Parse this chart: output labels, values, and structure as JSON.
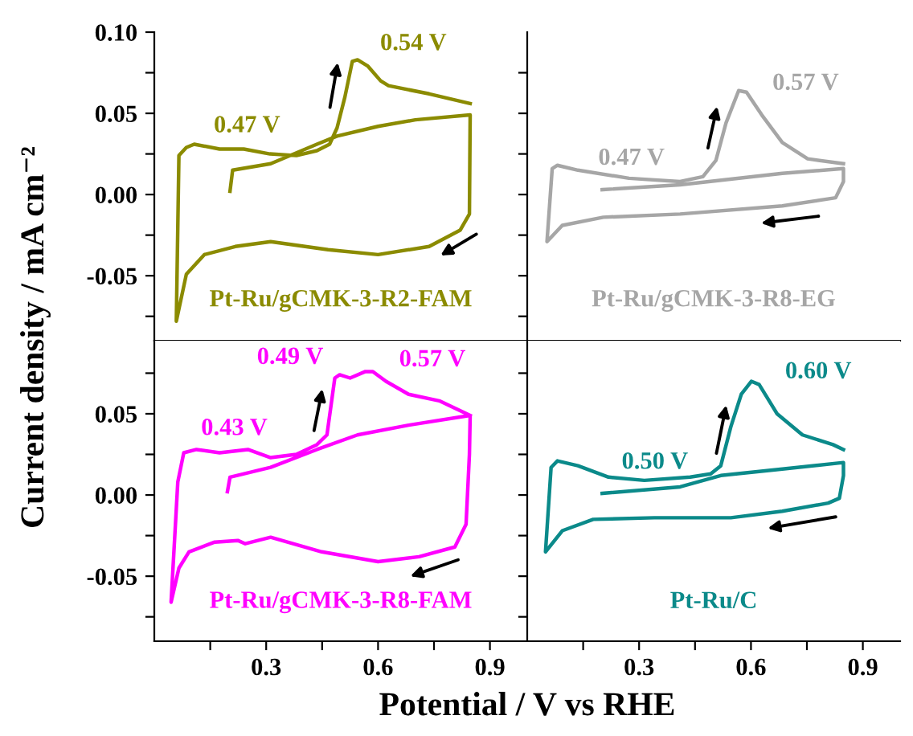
{
  "chart_data": [
    {
      "type": "line",
      "ylabel": "Current density / mA cm⁻²",
      "xlim": [
        0.0,
        1.0
      ],
      "ylim": [
        -0.09,
        0.1
      ],
      "xticks": [
        {
          "value": 0.15,
          "label": null
        },
        {
          "value": 0.3,
          "label": null
        },
        {
          "value": 0.45,
          "label": null
        },
        {
          "value": 0.6,
          "label": null
        },
        {
          "value": 0.75,
          "label": null
        },
        {
          "value": 0.9,
          "label": null
        }
      ],
      "yticks": [
        {
          "value": -0.075,
          "label": null
        },
        {
          "value": -0.05,
          "label": "-0.05"
        },
        {
          "value": -0.025,
          "label": null
        },
        {
          "value": 0,
          "label": "0.00"
        },
        {
          "value": 0.025,
          "label": null
        },
        {
          "value": 0.05,
          "label": "0.05"
        },
        {
          "value": 0.075,
          "label": null
        },
        {
          "value": 0.1,
          "label": "0.10"
        }
      ],
      "tick_labels": "y",
      "series": [
        {
          "name": "Pt-Ru/gCMK-3-R2-FAM",
          "color": "#8b8b00",
          "x": [
            0.203,
            0.21,
            0.312,
            0.436,
            0.49,
            0.6,
            0.7,
            0.847,
            0.845,
            0.82,
            0.737,
            0.6,
            0.466,
            0.312,
            0.217,
            0.134,
            0.086,
            0.059,
            0.066,
            0.086,
            0.107,
            0.175,
            0.24,
            0.31,
            0.381,
            0.436,
            0.47,
            0.49,
            0.511,
            0.531,
            0.545,
            0.573,
            0.607,
            0.628,
            0.737,
            0.847
          ],
          "values": [
            0.002,
            0.015,
            0.019,
            0.031,
            0.036,
            0.042,
            0.046,
            0.049,
            -0.012,
            -0.022,
            -0.032,
            -0.037,
            -0.034,
            -0.029,
            -0.032,
            -0.037,
            -0.049,
            -0.078,
            0.024,
            0.029,
            0.031,
            0.028,
            0.028,
            0.025,
            0.024,
            0.027,
            0.031,
            0.041,
            0.06,
            0.082,
            0.083,
            0.079,
            0.07,
            0.067,
            0.062,
            0.056
          ]
        }
      ],
      "annotations": [
        {
          "text": "0.54 V",
          "x": 0.545,
          "y": 0.083
        },
        {
          "text": "0.47 V",
          "x": 0.47,
          "y": 0.031
        }
      ]
    },
    {
      "type": "line",
      "xlim": [
        0.0,
        1.0
      ],
      "ylim": [
        -0.09,
        0.1
      ],
      "xticks": [
        {
          "value": 0.15,
          "label": null
        },
        {
          "value": 0.3,
          "label": null
        },
        {
          "value": 0.45,
          "label": null
        },
        {
          "value": 0.6,
          "label": null
        },
        {
          "value": 0.75,
          "label": null
        },
        {
          "value": 0.9,
          "label": null
        }
      ],
      "yticks": [
        {
          "value": -0.075,
          "label": null
        },
        {
          "value": -0.05,
          "label": null
        },
        {
          "value": -0.025,
          "label": null
        },
        {
          "value": 0,
          "label": null
        },
        {
          "value": 0.025,
          "label": null
        },
        {
          "value": 0.05,
          "label": null
        },
        {
          "value": 0.075,
          "label": null
        }
      ],
      "tick_labels": false,
      "series": [
        {
          "name": "Pt-Ru/gCMK-3-R8-EG",
          "color": "#a6a6a6",
          "x": [
            0.201,
            0.41,
            0.684,
            0.848,
            0.848,
            0.827,
            0.684,
            0.41,
            0.204,
            0.094,
            0.053,
            0.067,
            0.081,
            0.136,
            0.273,
            0.41,
            0.471,
            0.506,
            0.533,
            0.567,
            0.588,
            0.629,
            0.684,
            0.752,
            0.848
          ],
          "values": [
            0.003,
            0.006,
            0.013,
            0.016,
            0.008,
            -0.002,
            -0.007,
            -0.012,
            -0.014,
            -0.019,
            -0.029,
            0.016,
            0.018,
            0.015,
            0.01,
            0.008,
            0.011,
            0.021,
            0.044,
            0.064,
            0.063,
            0.049,
            0.032,
            0.022,
            0.019
          ]
        }
      ],
      "annotations": [
        {
          "text": "0.57 V",
          "x": 0.567,
          "y": 0.064
        },
        {
          "text": "0.47 V",
          "x": 0.471,
          "y": 0.011
        }
      ]
    },
    {
      "type": "line",
      "xlabel": "Potential / V vs RHE",
      "xlim": [
        0.0,
        1.0
      ],
      "ylim": [
        -0.09,
        0.095
      ],
      "xticks": [
        {
          "value": 0.15,
          "label": null
        },
        {
          "value": 0.3,
          "label": "0.3"
        },
        {
          "value": 0.45,
          "label": null
        },
        {
          "value": 0.6,
          "label": "0.6"
        },
        {
          "value": 0.75,
          "label": null
        },
        {
          "value": 0.9,
          "label": "0.9"
        }
      ],
      "yticks": [
        {
          "value": -0.075,
          "label": null
        },
        {
          "value": -0.05,
          "label": "-0.05"
        },
        {
          "value": -0.025,
          "label": null
        },
        {
          "value": 0,
          "label": "0.00"
        },
        {
          "value": 0.025,
          "label": null
        },
        {
          "value": 0.05,
          "label": "0.05"
        },
        {
          "value": 0.075,
          "label": null
        }
      ],
      "series": [
        {
          "name": "Pt-Ru/gCMK-3-R8-FAM",
          "color": "#ff00ff",
          "x": [
            0.196,
            0.203,
            0.312,
            0.436,
            0.545,
            0.682,
            0.847,
            0.845,
            0.836,
            0.806,
            0.71,
            0.6,
            0.449,
            0.312,
            0.244,
            0.224,
            0.162,
            0.093,
            0.066,
            0.045,
            0.063,
            0.079,
            0.113,
            0.175,
            0.251,
            0.312,
            0.381,
            0.436,
            0.463,
            0.484,
            0.497,
            0.525,
            0.566,
            0.586,
            0.621,
            0.682,
            0.764,
            0.847
          ],
          "values": [
            0.002,
            0.011,
            0.017,
            0.028,
            0.037,
            0.043,
            0.049,
            0.025,
            -0.018,
            -0.032,
            -0.038,
            -0.041,
            -0.035,
            -0.026,
            -0.03,
            -0.028,
            -0.029,
            -0.035,
            -0.045,
            -0.066,
            0.008,
            0.026,
            0.028,
            0.026,
            0.028,
            0.023,
            0.025,
            0.031,
            0.037,
            0.072,
            0.074,
            0.072,
            0.076,
            0.076,
            0.07,
            0.062,
            0.058,
            0.049
          ]
        }
      ],
      "annotations": [
        {
          "text": "0.49 V",
          "x": 0.484,
          "y": 0.072
        },
        {
          "text": "0.57 V",
          "x": 0.566,
          "y": 0.076
        },
        {
          "text": "0.43 V",
          "x": 0.436,
          "y": 0.031
        }
      ]
    },
    {
      "type": "line",
      "xlim": [
        0.0,
        1.0
      ],
      "ylim": [
        -0.09,
        0.095
      ],
      "xticks": [
        {
          "value": 0.15,
          "label": null
        },
        {
          "value": 0.3,
          "label": "0.3"
        },
        {
          "value": 0.45,
          "label": null
        },
        {
          "value": 0.6,
          "label": "0.6"
        },
        {
          "value": 0.75,
          "label": null
        },
        {
          "value": 0.9,
          "label": "0.9"
        }
      ],
      "yticks": [
        {
          "value": -0.075,
          "label": null
        },
        {
          "value": -0.05,
          "label": null
        },
        {
          "value": -0.025,
          "label": null
        },
        {
          "value": 0,
          "label": null
        },
        {
          "value": 0.025,
          "label": null
        },
        {
          "value": 0.05,
          "label": null
        },
        {
          "value": 0.075,
          "label": null
        }
      ],
      "tick_labels": "x",
      "series": [
        {
          "name": "Pt-Ru/C",
          "color": "#0b8a8a",
          "x": [
            0.201,
            0.41,
            0.519,
            0.684,
            0.848,
            0.848,
            0.837,
            0.807,
            0.684,
            0.546,
            0.341,
            0.177,
            0.094,
            0.049,
            0.064,
            0.081,
            0.136,
            0.218,
            0.314,
            0.437,
            0.492,
            0.519,
            0.546,
            0.574,
            0.601,
            0.622,
            0.67,
            0.738,
            0.82,
            0.848
          ],
          "values": [
            0.001,
            0.005,
            0.012,
            0.016,
            0.02,
            0.012,
            -0.002,
            -0.005,
            -0.01,
            -0.014,
            -0.014,
            -0.015,
            -0.022,
            -0.035,
            0.017,
            0.021,
            0.018,
            0.011,
            0.009,
            0.011,
            0.013,
            0.018,
            0.042,
            0.062,
            0.07,
            0.068,
            0.05,
            0.037,
            0.031,
            0.028
          ]
        }
      ],
      "annotations": [
        {
          "text": "0.60 V",
          "x": 0.601,
          "y": 0.07
        },
        {
          "text": "0.50 V",
          "x": 0.492,
          "y": 0.013
        }
      ]
    }
  ]
}
